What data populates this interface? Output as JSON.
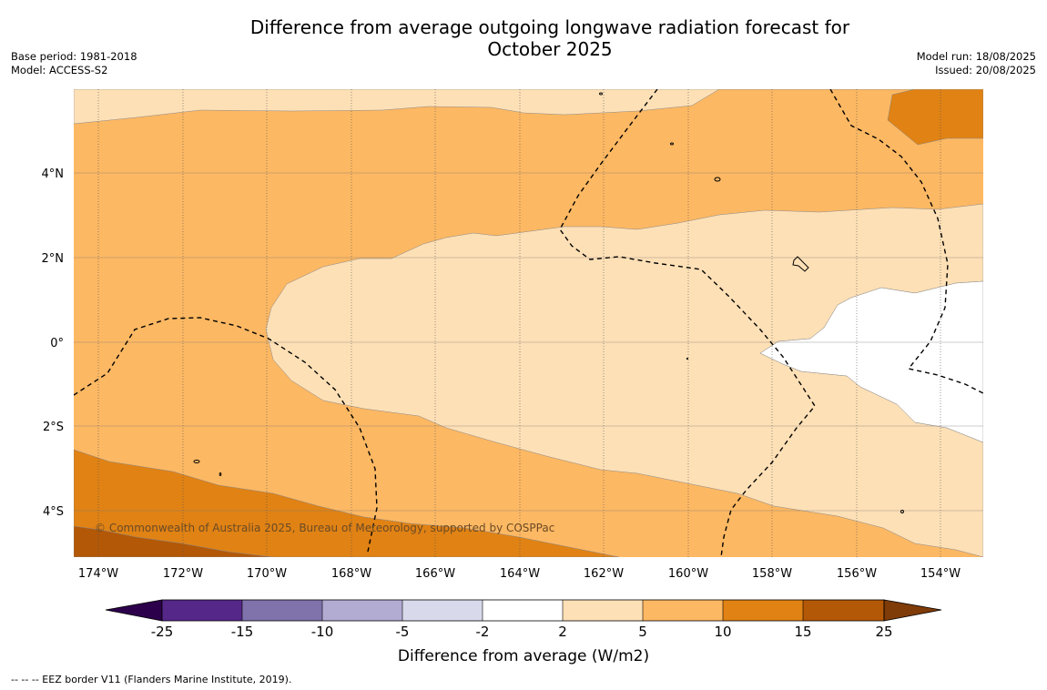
{
  "title_line1": "Difference from average outgoing longwave radiation forecast for",
  "title_line2": "October 2025",
  "base_period": "Base period: 1981-2018",
  "model": "Model: ACCESS-S2",
  "model_run": "Model run: 18/08/2025",
  "issued": "Issued: 20/08/2025",
  "copyright": "© Commonwealth of Australia 2025, Bureau of Meteorology, supported by COSPPac",
  "footnote": "--  --  -- EEZ border V11 (Flanders Marine Institute, 2019).",
  "lat_labels": [
    "4°N",
    "2°N",
    "0°",
    "2°S",
    "4°S"
  ],
  "lon_labels": [
    "174°W",
    "172°W",
    "170°W",
    "168°W",
    "166°W",
    "164°W",
    "162°W",
    "160°W",
    "158°W",
    "156°W",
    "154°W"
  ],
  "colorbar": {
    "label": "Difference from average (W/m2)",
    "ticks": [
      "-25",
      "-15",
      "-10",
      "-5",
      "-2",
      "2",
      "5",
      "10",
      "15",
      "25"
    ],
    "colors": {
      "below_-25": "#2d004b",
      "-25_-15": "#542788",
      "-15_-10": "#8073ac",
      "-10_-5": "#b2abd2",
      "-5_-2": "#d8daeb",
      "-2_2": "#ffffff",
      "2_5": "#fee0b6",
      "5_10": "#fdb863",
      "10_15": "#e08214",
      "15_25": "#b35806",
      "above_25": "#7f3b08"
    }
  }
}
